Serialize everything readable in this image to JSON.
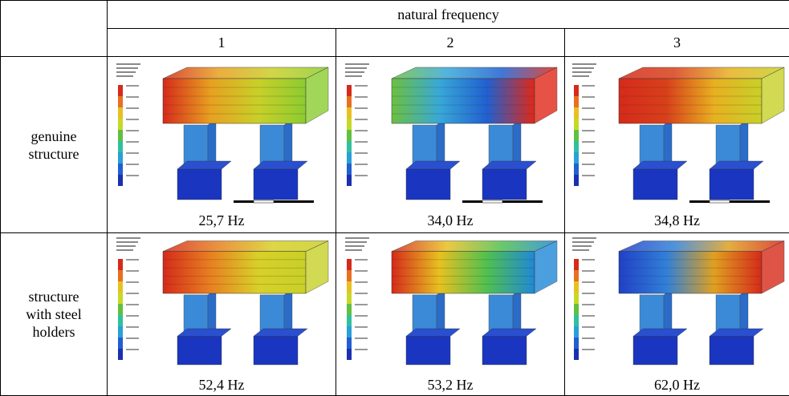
{
  "header": {
    "title": "natural frequency",
    "columns": [
      "1",
      "2",
      "3"
    ]
  },
  "rows": [
    {
      "label": "genuine structure",
      "cells": [
        "25,7 Hz",
        "34,0 Hz",
        "34,8 Hz"
      ]
    },
    {
      "label": "structure with steel holders",
      "cells": [
        "52,4 Hz",
        "53,2 Hz",
        "62,0 Hz"
      ]
    }
  ]
}
